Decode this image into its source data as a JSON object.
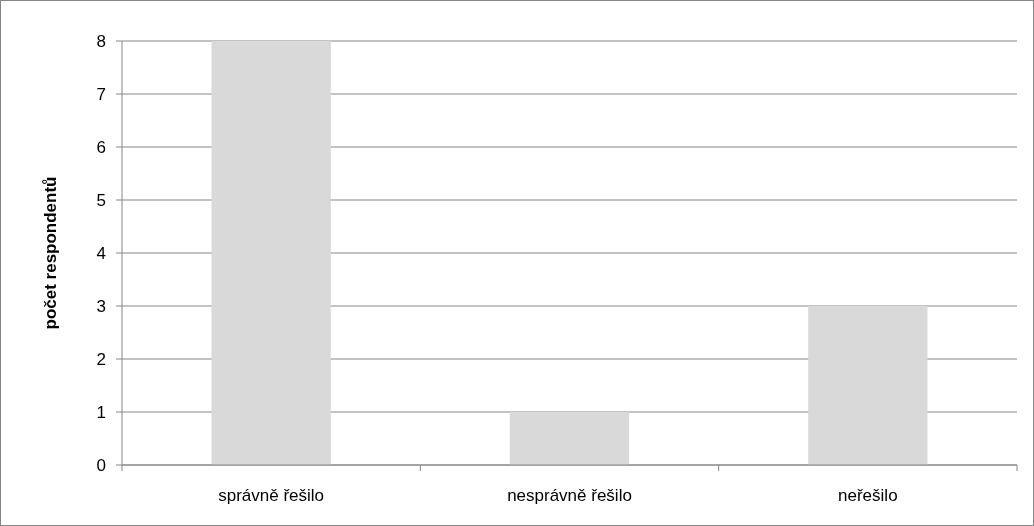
{
  "chart_data": {
    "type": "bar",
    "ylabel": "počet respondentů",
    "categories": [
      "správně řešilo",
      "nesprávně řešilo",
      "neřešilo"
    ],
    "values": [
      8,
      1,
      3
    ],
    "color": "#d9d9d9",
    "ylim": [
      0,
      8
    ],
    "yticks": [
      0,
      1,
      2,
      3,
      4,
      5,
      6,
      7,
      8
    ],
    "grid": "y"
  }
}
